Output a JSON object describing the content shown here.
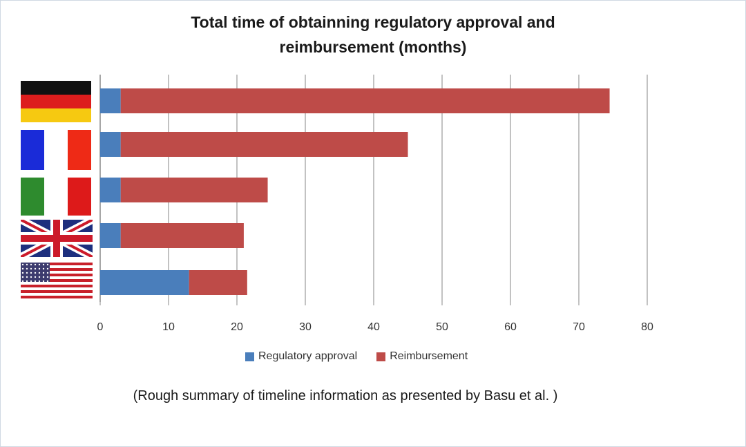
{
  "chart_data": {
    "type": "bar",
    "orientation": "horizontal",
    "stacked": true,
    "title": "Total time of obtainning regulatory approval and reimbursement (months)",
    "title_lines": [
      "Total time of obtainning regulatory approval and",
      "reimbursement (months)"
    ],
    "categories": [
      "Germany flag",
      "France flag",
      "Italy flag",
      "United Kingdom flag",
      "United States flag"
    ],
    "series": [
      {
        "name": "Regulatory approval",
        "color": "#4a7ebb",
        "values": [
          3,
          3,
          3,
          3,
          13
        ]
      },
      {
        "name": "Reimbursement",
        "color": "#be4b48",
        "values": [
          71.5,
          42,
          21.5,
          18,
          8.5
        ]
      }
    ],
    "xlim": [
      0,
      80
    ],
    "xticks": [
      "0",
      "10",
      "20",
      "30",
      "40",
      "50",
      "60",
      "70",
      "80"
    ],
    "grid": true,
    "legend_position": "bottom",
    "xlabel": "",
    "ylabel": ""
  },
  "footnote": "(Rough summary of timeline information as presented by Basu et al. )"
}
